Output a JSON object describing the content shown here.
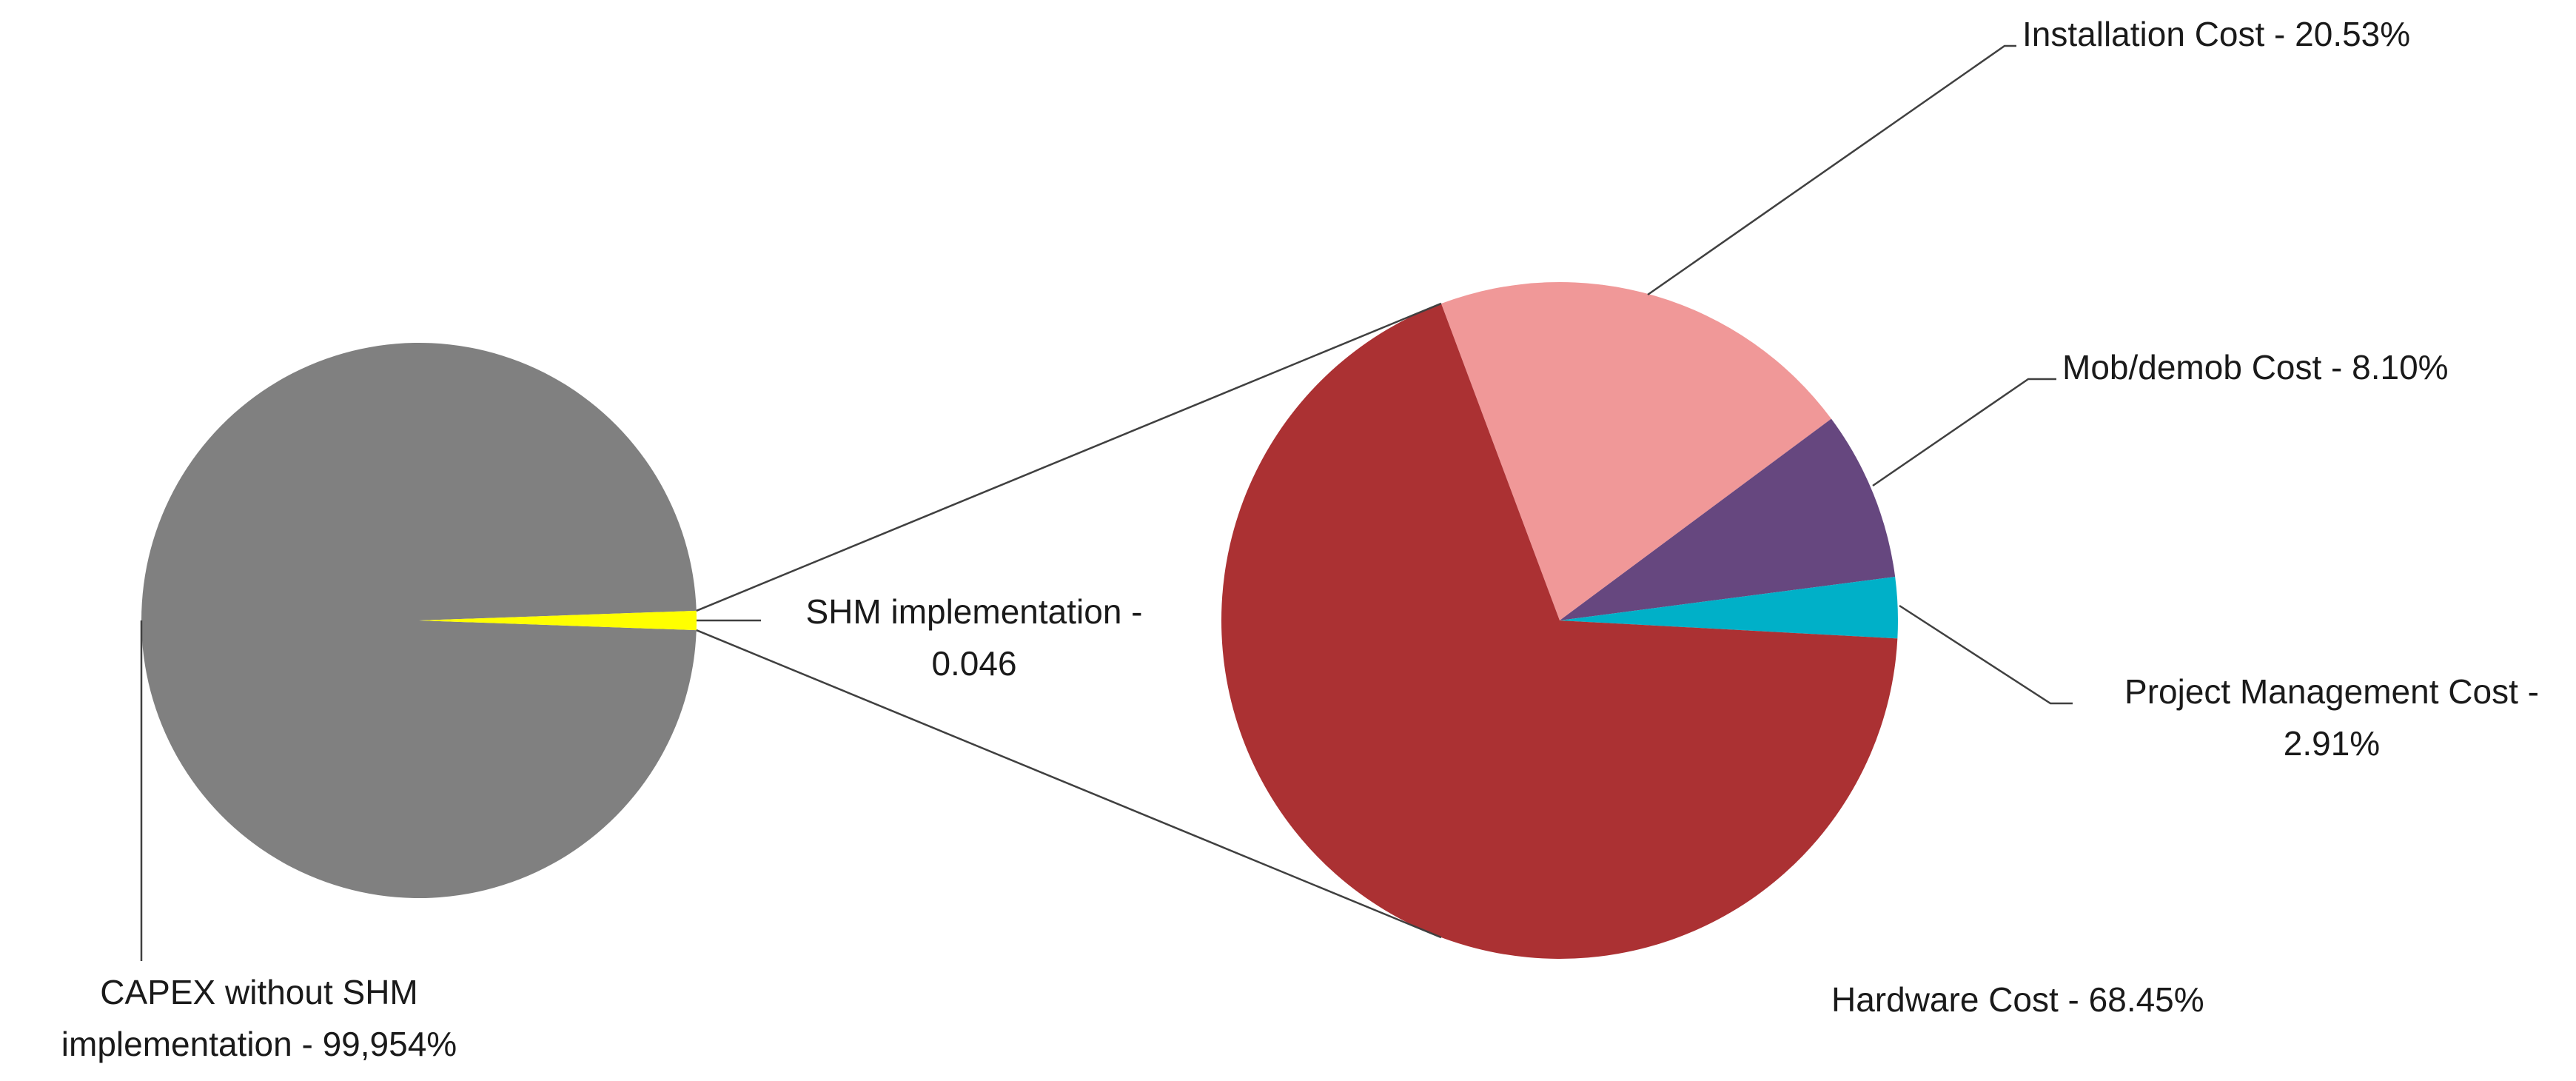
{
  "chart_data": {
    "type": "pie",
    "subtype": "pie-of-pie",
    "title": "",
    "primary": {
      "slices": [
        {
          "label": "CAPEX without SHM implementation - 99,954%",
          "label_lines": [
            "CAPEX without SHM",
            "implementation - 99,954%"
          ],
          "value": 99.954,
          "color": "#808080"
        },
        {
          "label": "SHM implementation - 0.046",
          "label_lines": [
            "SHM implementation -",
            "0.046"
          ],
          "value": 0.046,
          "color": "#ffff00"
        }
      ]
    },
    "secondary": {
      "breakdown_of": "SHM implementation",
      "slices": [
        {
          "label": "Installation Cost - 20.53%",
          "label_lines": [
            "Installation Cost - 20.53%"
          ],
          "value": 20.53,
          "color": "#f09898"
        },
        {
          "label": "Mob/demob Cost - 8.10%",
          "label_lines": [
            "Mob/demob Cost - 8.10%"
          ],
          "value": 8.1,
          "color": "#66477f"
        },
        {
          "label": "Project Management Cost - 2.91%",
          "label_lines": [
            "Project Management Cost -",
            "2.91%"
          ],
          "value": 2.91,
          "color": "#00b0c8"
        },
        {
          "label": "Hardware Cost - 68.45%",
          "label_lines": [
            "Hardware Cost - 68.45%"
          ],
          "value": 68.45,
          "color": "#ab3133"
        }
      ]
    },
    "legend": "none",
    "data_labels": "outside-with-leader-lines"
  }
}
